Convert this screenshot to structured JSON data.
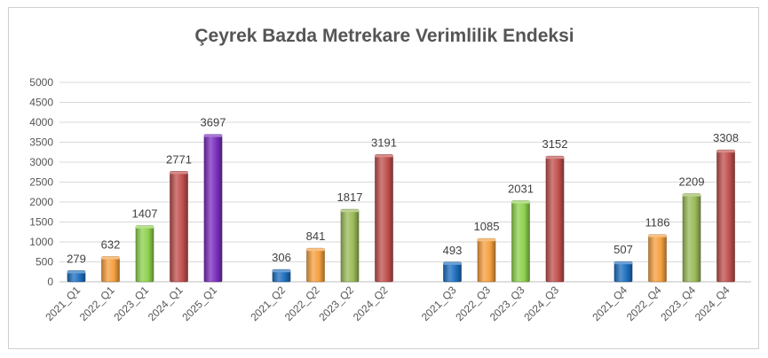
{
  "chart_data": {
    "type": "bar",
    "title": "Çeyrek Bazda Metrekare Verimlilik Endeksi",
    "xlabel": "",
    "ylabel": "",
    "ylim": [
      0,
      5000
    ],
    "yticks": [
      0,
      500,
      1000,
      1500,
      2000,
      2500,
      3000,
      3500,
      4000,
      4500,
      5000
    ],
    "grid": true,
    "legend": "none",
    "groups": [
      {
        "bars": [
          {
            "label": "2021_Q1",
            "value": 279,
            "color": "#1f6fbf"
          },
          {
            "label": "2022_Q1",
            "value": 632,
            "color": "#f5a040"
          },
          {
            "label": "2023_Q1",
            "value": 1407,
            "color": "#8fd14f"
          },
          {
            "label": "2024_Q1",
            "value": 2771,
            "color": "#c0504d"
          },
          {
            "label": "2025_Q1",
            "value": 3697,
            "color": "#7b2fbe"
          }
        ]
      },
      {
        "bars": [
          {
            "label": "2021_Q2",
            "value": 306,
            "color": "#1f6fbf"
          },
          {
            "label": "2022_Q2",
            "value": 841,
            "color": "#f5a040"
          },
          {
            "label": "2023_Q2",
            "value": 1817,
            "color": "#9bbb59"
          },
          {
            "label": "2024_Q2",
            "value": 3191,
            "color": "#c0504d"
          }
        ]
      },
      {
        "bars": [
          {
            "label": "2021_Q3",
            "value": 493,
            "color": "#1f6fbf"
          },
          {
            "label": "2022_Q3",
            "value": 1085,
            "color": "#f5a040"
          },
          {
            "label": "2023_Q3",
            "value": 2031,
            "color": "#8fd14f"
          },
          {
            "label": "2024_Q3",
            "value": 3152,
            "color": "#c0504d"
          }
        ]
      },
      {
        "bars": [
          {
            "label": "2021_Q4",
            "value": 507,
            "color": "#1f6fbf"
          },
          {
            "label": "2022_Q4",
            "value": 1186,
            "color": "#f5a040"
          },
          {
            "label": "2023_Q4",
            "value": 2209,
            "color": "#9bbb59"
          },
          {
            "label": "2024_Q4",
            "value": 3308,
            "color": "#c0504d"
          }
        ]
      }
    ]
  }
}
